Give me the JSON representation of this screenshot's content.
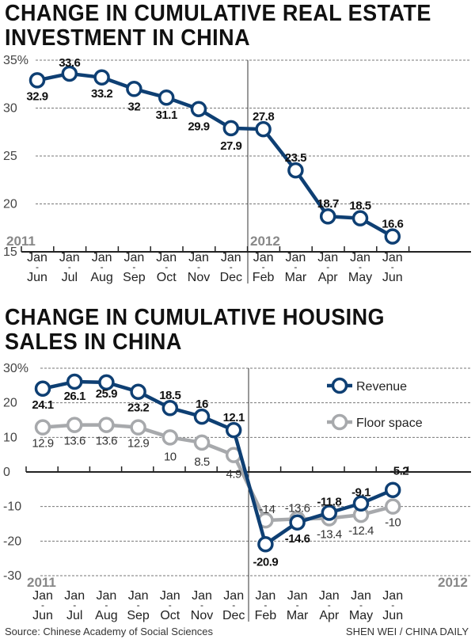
{
  "chart_data": [
    {
      "type": "line",
      "title": [
        "CHANGE IN CUMULATIVE REAL ESTATE",
        "INVESTMENT IN CHINA"
      ],
      "categories": [
        "Jan-Jun",
        "Jan-Jul",
        "Jan-Aug",
        "Jan-Sep",
        "Jan-Oct",
        "Jan-Nov",
        "Jan-Dec",
        "Jan-Feb",
        "Jan-Mar",
        "Jan-Apr",
        "Jan-May",
        "Jan-Jun"
      ],
      "tick_top": [
        "Jan",
        "Jan",
        "Jan",
        "Jan",
        "Jan",
        "Jan",
        "Jan",
        "Jan",
        "Jan",
        "Jan",
        "Jan",
        "Jan"
      ],
      "tick_bottom": [
        "Jun",
        "Jul",
        "Aug",
        "Sep",
        "Oct",
        "Nov",
        "Dec",
        "Feb",
        "Mar",
        "Apr",
        "May",
        "Jun"
      ],
      "year_labels": [
        "2011",
        "2012"
      ],
      "series": [
        {
          "values": [
            32.9,
            33.6,
            33.2,
            32,
            31.1,
            29.9,
            27.9,
            27.8,
            23.5,
            18.7,
            18.5,
            16.6
          ],
          "labels": [
            "32.9",
            "33.6",
            "33.2",
            "32",
            "31.1",
            "29.9",
            "27.9",
            "27.8",
            "23.5",
            "18.7",
            "18.5",
            "16.6"
          ],
          "color": "#0e3f73"
        }
      ],
      "ylim": [
        15,
        35
      ],
      "yticks": [
        "15",
        "20",
        "25",
        "30",
        "35%"
      ],
      "grid": true
    },
    {
      "type": "line",
      "title": [
        "CHANGE IN CUMULATIVE HOUSING",
        "SALES IN CHINA"
      ],
      "categories": [
        "Jan-Jun",
        "Jan-Jul",
        "Jan-Aug",
        "Jan-Sep",
        "Jan-Oct",
        "Jan-Nov",
        "Jan-Dec",
        "Jan-Feb",
        "Jan-Mar",
        "Jan-Apr",
        "Jan-May",
        "Jan-Jun"
      ],
      "tick_top": [
        "Jan",
        "Jan",
        "Jan",
        "Jan",
        "Jan",
        "Jan",
        "Jan",
        "Jan",
        "Jan",
        "Jan",
        "Jan",
        "Jan"
      ],
      "tick_bottom": [
        "Jun",
        "Jul",
        "Aug",
        "Sep",
        "Oct",
        "Nov",
        "Dec",
        "Feb",
        "Mar",
        "Apr",
        "May",
        "Jun"
      ],
      "year_labels": [
        "2011",
        "2012"
      ],
      "series": [
        {
          "name": "Revenue",
          "values": [
            24.1,
            26.1,
            25.9,
            23.2,
            18.5,
            16,
            12.1,
            -20.9,
            -14.6,
            -11.8,
            -9.1,
            -5.2
          ],
          "labels": [
            "24.1",
            "26.1",
            "25.9",
            "23.2",
            "18.5",
            "16",
            "12.1",
            "-20.9",
            "-14.6",
            "-11.8",
            "-9.1",
            "-5.2"
          ],
          "color": "#0e3f73"
        },
        {
          "name": "Floor space",
          "values": [
            12.9,
            13.6,
            13.6,
            12.9,
            10,
            8.5,
            4.9,
            -14,
            -13.6,
            -13.4,
            -12.4,
            -10
          ],
          "labels": [
            "12.9",
            "13.6",
            "13.6",
            "12.9",
            "10",
            "8.5",
            "4.9",
            "-14",
            "-13.6",
            "-13.4",
            "-12.4",
            "-10"
          ],
          "color": "#a7a9ac"
        }
      ],
      "ylim": [
        -30,
        30
      ],
      "yticks": [
        "-30",
        "-20",
        "-10",
        "0",
        "10",
        "20",
        "30%"
      ],
      "legend": "top-right",
      "grid": true
    }
  ],
  "footer": {
    "source": "Source: Chinese Academy of Social Sciences",
    "credit": "SHEN WEI / CHINA DAILY"
  }
}
